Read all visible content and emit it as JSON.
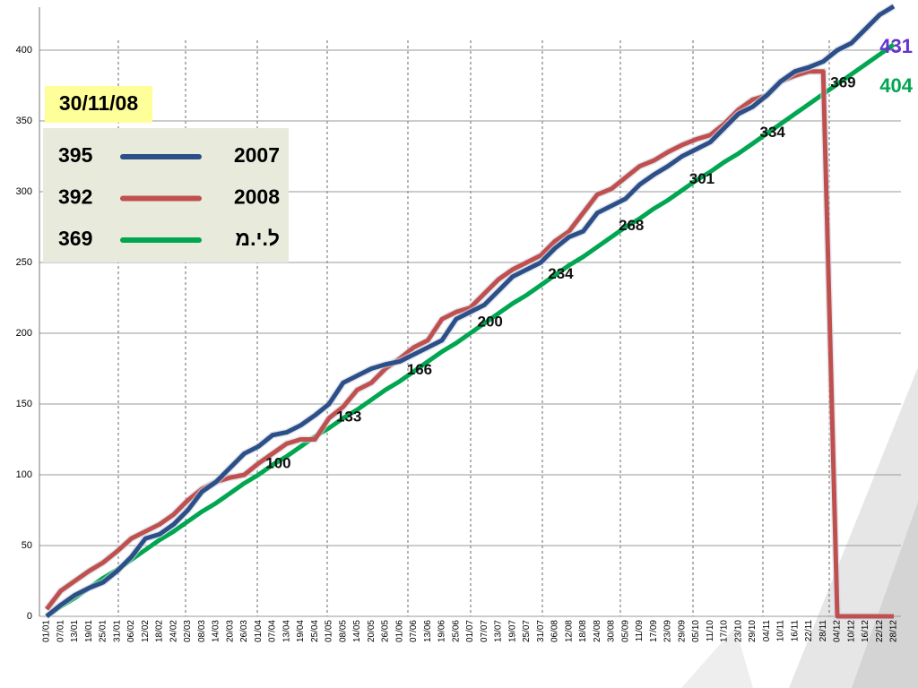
{
  "chart_data": {
    "type": "line",
    "categories": [
      "01/01",
      "07/01",
      "13/01",
      "19/01",
      "25/01",
      "31/01",
      "06/02",
      "12/02",
      "18/02",
      "24/02",
      "02/03",
      "08/03",
      "14/03",
      "20/03",
      "26/03",
      "01/04",
      "07/04",
      "13/04",
      "19/04",
      "25/04",
      "01/05",
      "08/05",
      "14/05",
      "20/05",
      "26/05",
      "01/06",
      "07/06",
      "13/06",
      "19/06",
      "25/06",
      "01/07",
      "07/07",
      "13/07",
      "19/07",
      "25/07",
      "31/07",
      "06/08",
      "12/08",
      "18/08",
      "24/08",
      "30/08",
      "05/09",
      "11/09",
      "17/09",
      "23/09",
      "29/09",
      "05/10",
      "11/10",
      "17/10",
      "23/10",
      "29/10",
      "04/11",
      "10/11",
      "16/11",
      "22/11",
      "28/11",
      "04/12",
      "10/12",
      "16/12",
      "22/12",
      "28/12"
    ],
    "ylim": [
      0,
      430
    ],
    "yticks": [
      0,
      50,
      100,
      150,
      200,
      250,
      300,
      350,
      400
    ],
    "grid": true,
    "legend": {
      "date": "30/11/08"
    },
    "series": [
      {
        "name": "2007",
        "color": "#2c4f87",
        "legend_value": 395,
        "values": [
          0,
          8,
          15,
          20,
          24,
          32,
          42,
          55,
          58,
          65,
          75,
          88,
          95,
          105,
          115,
          120,
          128,
          130,
          135,
          142,
          150,
          165,
          170,
          175,
          178,
          180,
          185,
          190,
          195,
          210,
          215,
          220,
          230,
          240,
          245,
          250,
          260,
          268,
          272,
          285,
          290,
          295,
          305,
          312,
          318,
          325,
          330,
          335,
          345,
          355,
          360,
          368,
          378,
          385,
          388,
          392,
          400,
          405,
          415,
          425,
          431
        ],
        "value_labels": [
          null,
          null,
          null,
          null,
          null,
          null,
          null,
          null,
          null,
          null,
          null,
          null,
          null,
          null,
          null,
          null,
          null,
          null,
          null,
          null,
          null,
          null,
          null,
          null,
          null,
          null,
          null,
          null,
          null,
          null,
          null,
          null,
          null,
          null,
          null,
          null,
          null,
          null,
          null,
          null,
          null,
          null,
          null,
          null,
          null,
          null,
          null,
          null,
          null,
          null,
          null,
          null,
          null,
          null,
          null,
          null,
          null,
          null,
          null,
          null,
          "431"
        ],
        "label_color": "#6633cc"
      },
      {
        "name": "2008",
        "color": "#c0504d",
        "legend_value": 392,
        "values": [
          5,
          18,
          25,
          32,
          38,
          46,
          55,
          60,
          65,
          72,
          82,
          90,
          95,
          98,
          100,
          108,
          115,
          122,
          125,
          125,
          140,
          148,
          160,
          165,
          175,
          182,
          190,
          195,
          210,
          215,
          218,
          228,
          238,
          245,
          250,
          255,
          265,
          272,
          285,
          298,
          302,
          310,
          318,
          322,
          328,
          333,
          337,
          340,
          348,
          358,
          365,
          368,
          378,
          382,
          385,
          385,
          0,
          0,
          0,
          0,
          0
        ]
      },
      {
        "name": "ל.י.מ",
        "color": "#00a650",
        "legend_value": 369,
        "values": [
          0,
          7,
          13,
          20,
          27,
          33,
          40,
          47,
          54,
          60,
          67,
          74,
          80,
          87,
          94,
          100,
          107,
          113,
          120,
          127,
          133,
          140,
          146,
          153,
          160,
          166,
          173,
          180,
          187,
          193,
          200,
          207,
          214,
          221,
          227,
          234,
          241,
          248,
          254,
          261,
          268,
          275,
          281,
          288,
          294,
          301,
          308,
          314,
          321,
          327,
          334,
          341,
          348,
          355,
          362,
          369,
          376,
          383,
          390,
          397,
          404
        ],
        "value_labels": [
          null,
          null,
          null,
          null,
          null,
          null,
          null,
          null,
          null,
          null,
          null,
          null,
          null,
          null,
          null,
          "100",
          null,
          null,
          null,
          null,
          "133",
          null,
          null,
          null,
          null,
          "166",
          null,
          null,
          null,
          null,
          "200",
          null,
          null,
          null,
          null,
          "234",
          null,
          null,
          null,
          null,
          "268",
          null,
          null,
          null,
          null,
          "301",
          null,
          null,
          null,
          null,
          "334",
          null,
          null,
          null,
          null,
          "369",
          null,
          null,
          null,
          null,
          "404"
        ],
        "label_color": "#00a650"
      }
    ]
  }
}
